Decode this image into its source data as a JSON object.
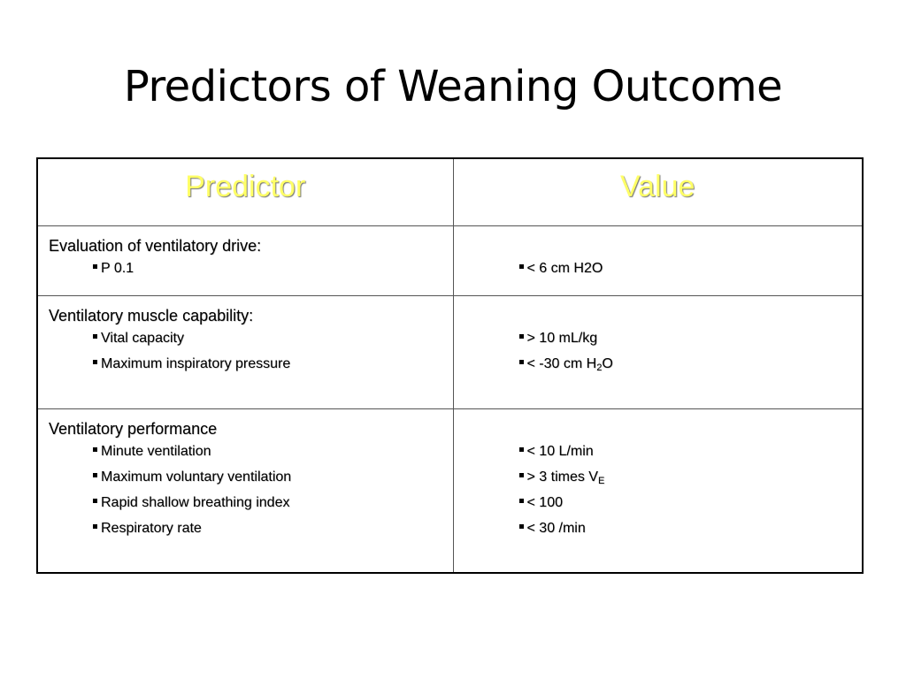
{
  "slide": {
    "title": "Predictors of Weaning Outcome"
  },
  "colors": {
    "header_text": "#ffff66",
    "text": "#000000",
    "border": "#000000"
  },
  "table": {
    "headers": {
      "predictor": "Predictor",
      "value": "Value"
    },
    "rows": [
      {
        "group": "Evaluation of ventilatory drive:",
        "items": [
          {
            "predictor": "P 0.1",
            "value": "< 6 cm H2O"
          }
        ]
      },
      {
        "group": "Ventilatory muscle capability:",
        "items": [
          {
            "predictor": "Vital capacity",
            "value": "> 10 mL/kg"
          },
          {
            "predictor": "Maximum inspiratory pressure",
            "value_main": "< -30 cm H",
            "value_sub": "2",
            "value_tail": "O"
          }
        ]
      },
      {
        "group": "Ventilatory performance",
        "items": [
          {
            "predictor": "Minute ventilation",
            "value": "< 10 L/min"
          },
          {
            "predictor": "Maximum voluntary ventilation",
            "value_main": "> 3 times V",
            "value_sub": "E"
          },
          {
            "predictor": "Rapid shallow breathing index",
            "value": "< 100"
          },
          {
            "predictor": "Respiratory rate",
            "value": "< 30 /min"
          }
        ]
      }
    ]
  }
}
